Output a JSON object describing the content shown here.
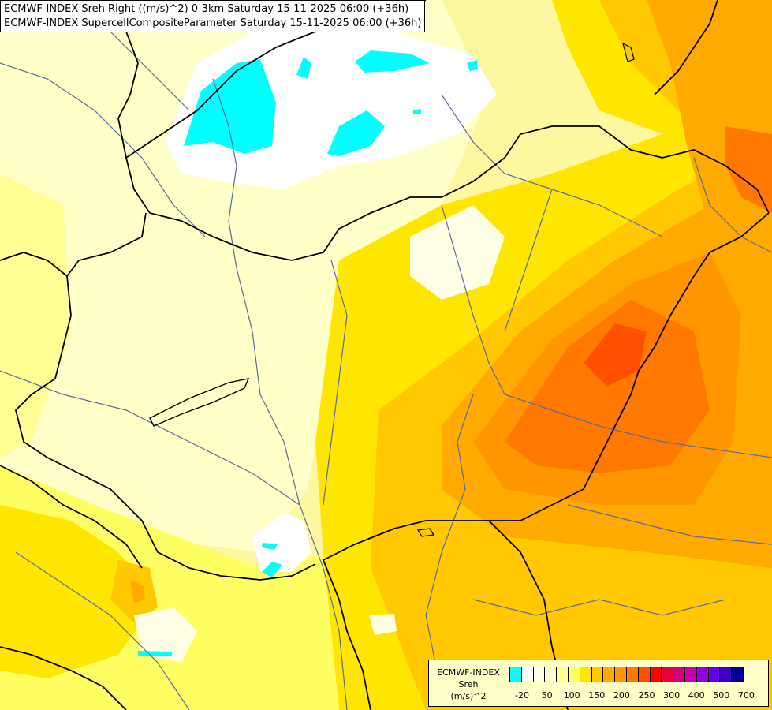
{
  "title": {
    "line1": "ECMWF-INDEX Sreh Right ((m/s)^2) 0-3km Saturday 15-11-2025 06:00 (+36h)",
    "line2": "ECMWF-INDEX SupercellCompositeParameter Saturday 15-11-2025 06:00 (+36h)"
  },
  "legend": {
    "line1": "ECMWF-INDEX",
    "line2": "Sreh",
    "line3": "(m/s)^2",
    "swatch_colors": [
      "#00ffff",
      "#ffffff",
      "#ffffe6",
      "#ffffc8",
      "#ffff96",
      "#ffff64",
      "#ffe600",
      "#ffc800",
      "#ffaa00",
      "#ff9600",
      "#ff7800",
      "#ff5000",
      "#ff0000",
      "#e6003c",
      "#d2007d",
      "#c800b4",
      "#9600dc",
      "#6400e6",
      "#3c00c8",
      "#000096"
    ],
    "tick_labels": [
      "-20",
      "50",
      "100",
      "150",
      "200",
      "250",
      "300",
      "400",
      "500",
      "700"
    ]
  },
  "map": {
    "region": "Central Europe",
    "palette": {
      "cyan": "#00ffff",
      "white": "#ffffff",
      "pale": "#ffffc8",
      "light_yellow": "#ffff96",
      "yellow": "#ffff64",
      "gold": "#ffe600",
      "amber": "#ffc800",
      "orange": "#ffaa00",
      "dark_orange": "#ff9600",
      "red_orange": "#ff7800",
      "red": "#ff5000",
      "river": "#5a6aa0",
      "border": "#000000"
    }
  }
}
